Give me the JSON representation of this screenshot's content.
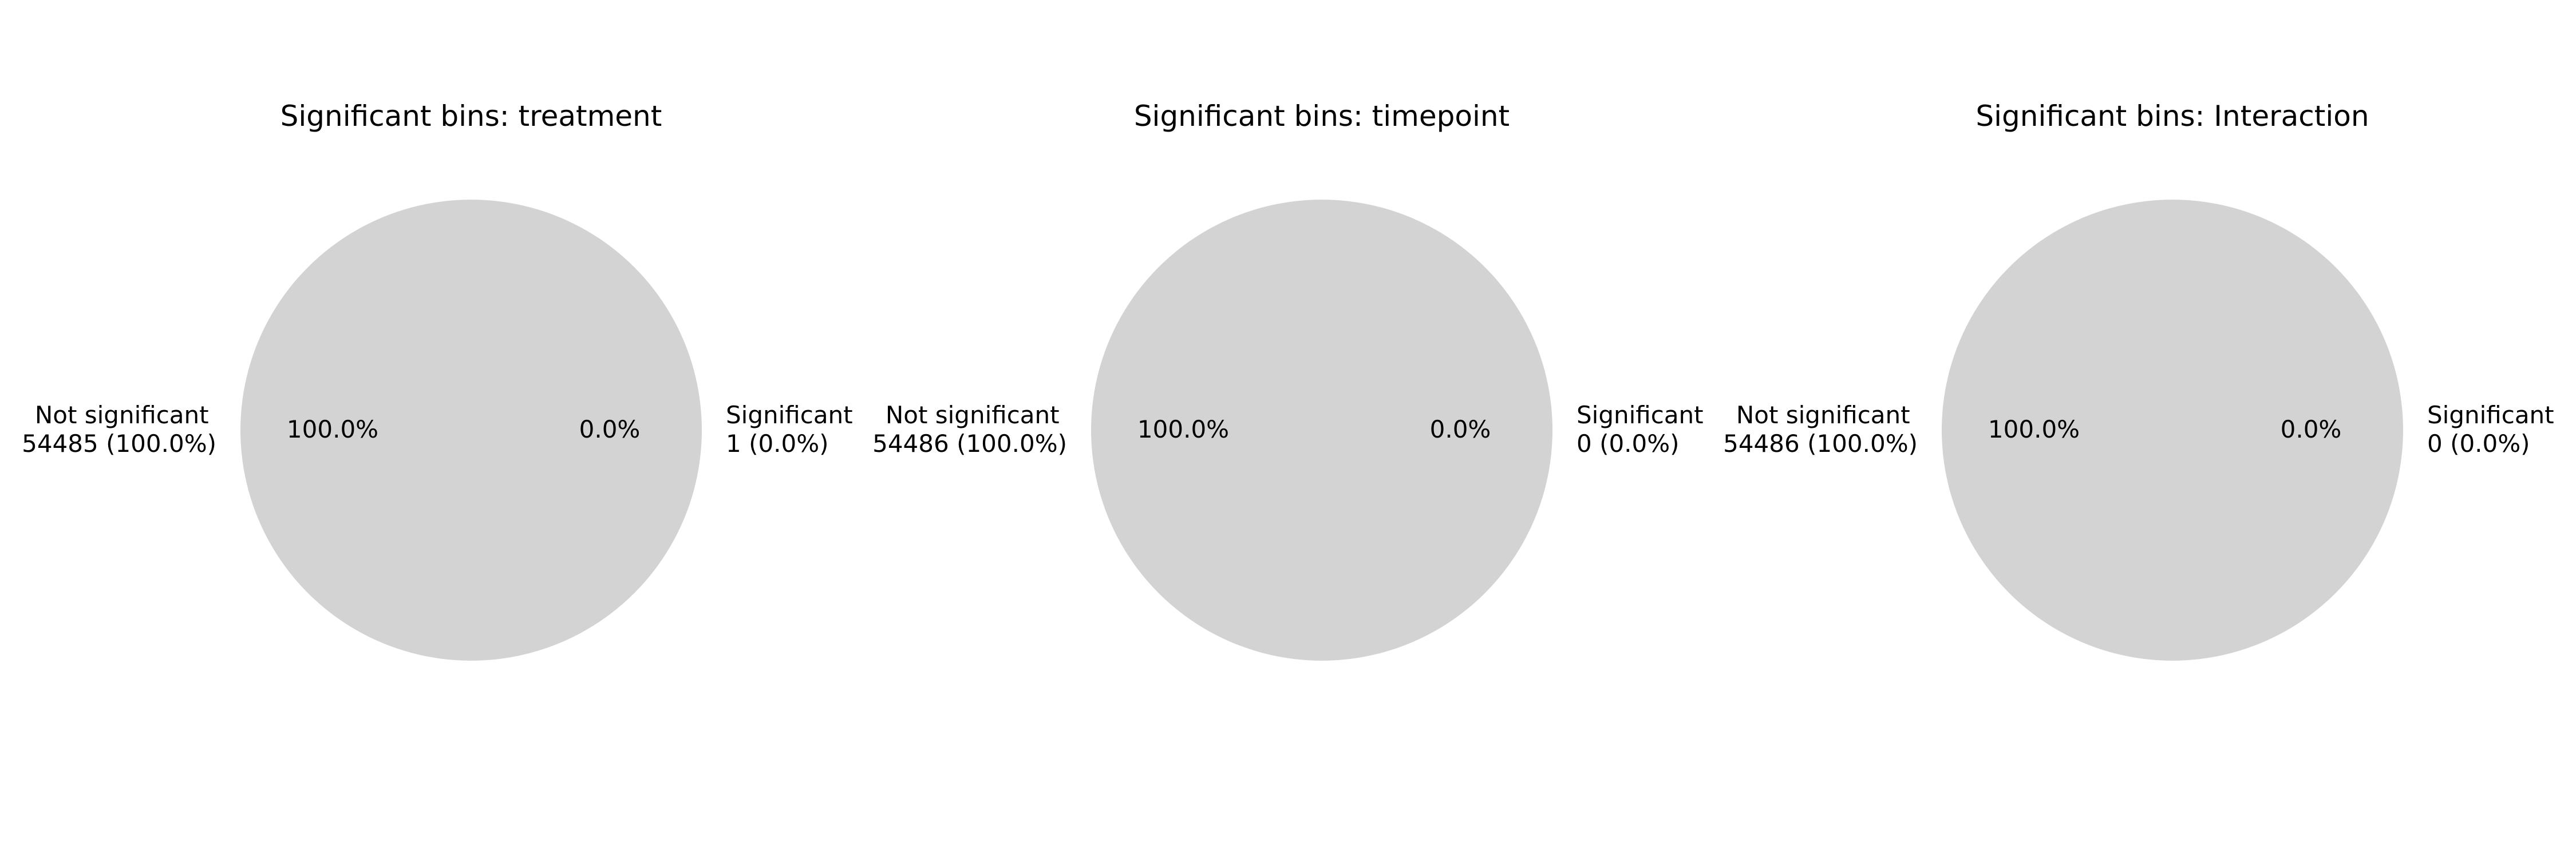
{
  "colors": {
    "slice": "#d3d3d3",
    "background": "#ffffff",
    "text": "#000000"
  },
  "chart_data": [
    {
      "type": "pie",
      "title": "Significant bins: treatment",
      "categories": [
        "Not significant",
        "Significant"
      ],
      "values": [
        54485,
        1
      ],
      "slice_labels": [
        "Not significant",
        "Significant"
      ],
      "count_labels": [
        "54485 (100.0%)",
        "1 (0.0%)"
      ],
      "autopct_labels": [
        "100.0%",
        "0.0%"
      ]
    },
    {
      "type": "pie",
      "title": "Significant bins: timepoint",
      "categories": [
        "Not significant",
        "Significant"
      ],
      "values": [
        54486,
        0
      ],
      "slice_labels": [
        "Not significant",
        "Significant"
      ],
      "count_labels": [
        "54486 (100.0%)",
        "0 (0.0%)"
      ],
      "autopct_labels": [
        "100.0%",
        "0.0%"
      ]
    },
    {
      "type": "pie",
      "title": "Significant bins: Interaction",
      "categories": [
        "Not significant",
        "Significant"
      ],
      "values": [
        54486,
        0
      ],
      "slice_labels": [
        "Not significant",
        "Significant"
      ],
      "count_labels": [
        "54486 (100.0%)",
        "0 (0.0%)"
      ],
      "autopct_labels": [
        "100.0%",
        "0.0%"
      ]
    }
  ]
}
